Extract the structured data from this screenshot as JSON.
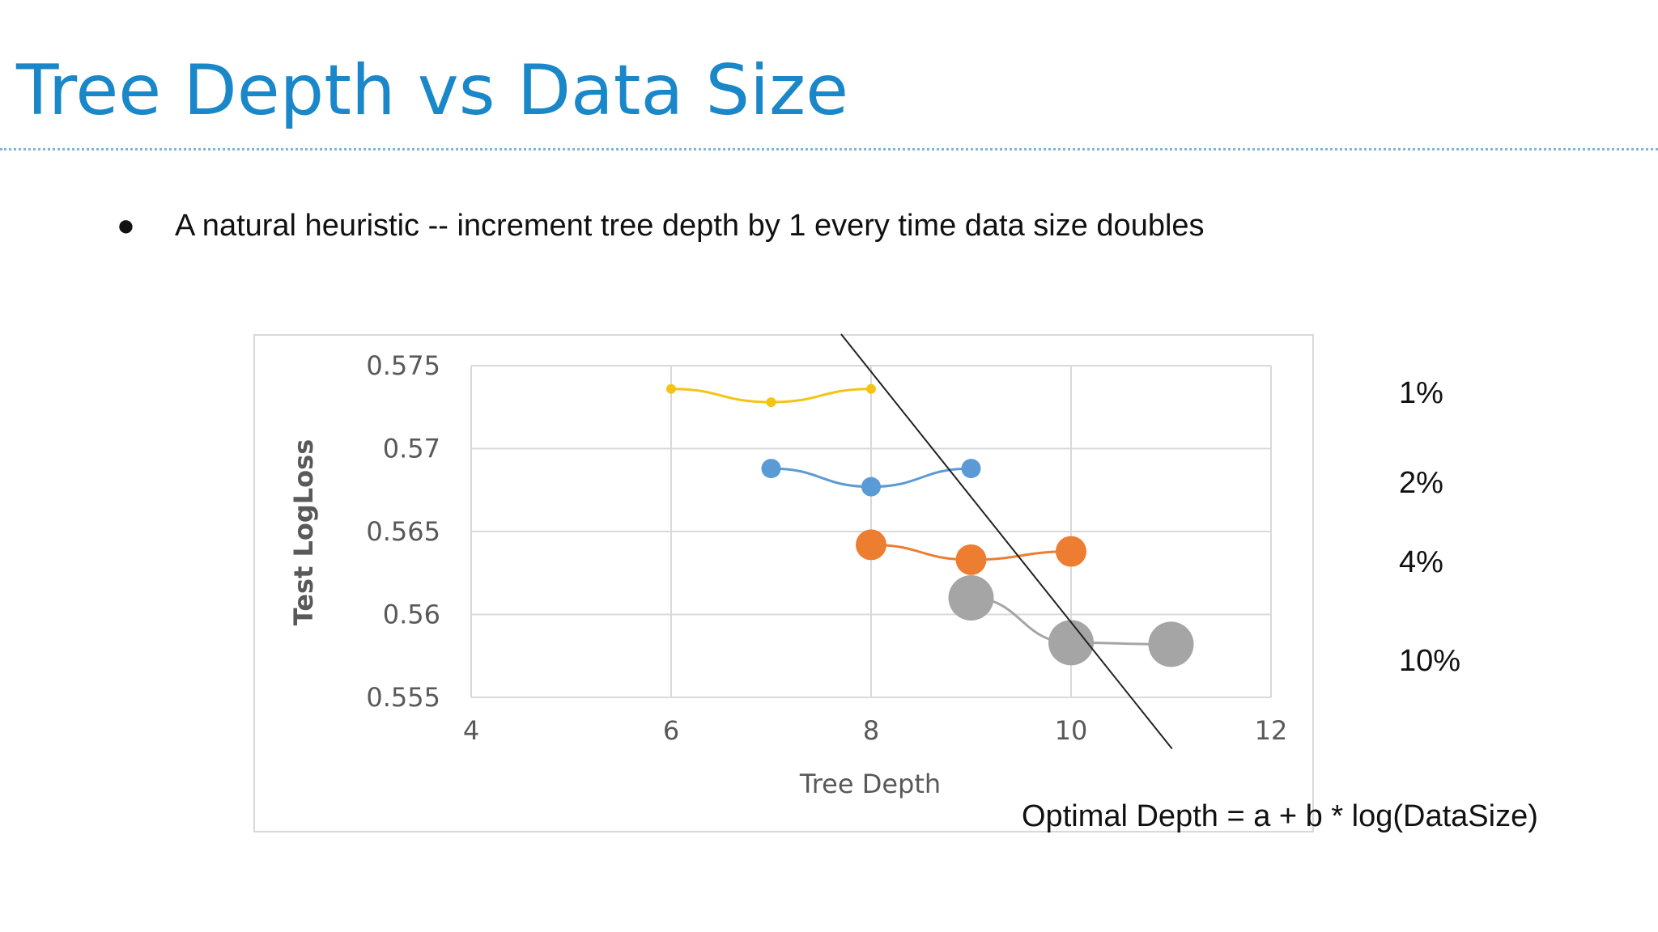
{
  "slide": {
    "title": "Tree Depth vs Data Size",
    "bullet": "A natural heuristic -- increment tree depth by 1 every time data size doubles",
    "bullet_glyph": "●",
    "formula": "Optimal Depth = a + b * log(DataSize)"
  },
  "side_labels": [
    "1%",
    "2%",
    "4%",
    "10%"
  ],
  "colors": {
    "title": "#1a87c9",
    "grid": "#d9d9d9",
    "axis_text": "#595959",
    "trend_line": "#222222"
  },
  "chart_data": {
    "type": "scatter",
    "title": "",
    "xlabel": "Tree Depth",
    "ylabel": "Test LogLoss",
    "xlim": [
      4,
      12
    ],
    "ylim": [
      0.555,
      0.575
    ],
    "x_ticks": [
      "4",
      "6",
      "8",
      "10",
      "12"
    ],
    "y_ticks": [
      "0.575",
      "0.57",
      "0.565",
      "0.56",
      "0.555"
    ],
    "grid": true,
    "series": [
      {
        "color": "#f5c314",
        "marker_size": "small",
        "points": [
          [
            6,
            0.5736
          ],
          [
            7,
            0.5728
          ],
          [
            8,
            0.5736
          ]
        ]
      },
      {
        "color": "#5b9bd5",
        "marker_size": "medium",
        "points": [
          [
            7,
            0.5688
          ],
          [
            8,
            0.5677
          ],
          [
            9,
            0.5688
          ]
        ]
      },
      {
        "color": "#ed7d31",
        "marker_size": "large",
        "points": [
          [
            8,
            0.5642
          ],
          [
            9,
            0.5633
          ],
          [
            10,
            0.5638
          ]
        ]
      },
      {
        "color": "#a5a5a5",
        "marker_size": "xlarge",
        "points": [
          [
            9,
            0.561
          ],
          [
            10,
            0.5583
          ],
          [
            11,
            0.5582
          ]
        ]
      }
    ],
    "annotations": {
      "trend_line": {
        "from": [
          7.7,
          0.5769
        ],
        "to": [
          11.01,
          0.5519
        ]
      }
    }
  }
}
